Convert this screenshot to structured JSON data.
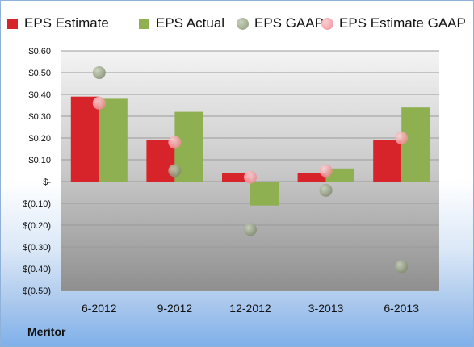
{
  "chart_data": {
    "type": "bar",
    "categories": [
      "6-2012",
      "9-2012",
      "12-2012",
      "3-2013",
      "6-2013"
    ],
    "series": [
      {
        "name": "EPS Estimate",
        "kind": "bar",
        "color": "#d7232a",
        "values": [
          0.39,
          0.19,
          0.04,
          0.04,
          0.19
        ]
      },
      {
        "name": "EPS Actual",
        "kind": "bar",
        "color": "#8fb050",
        "values": [
          0.38,
          0.32,
          -0.11,
          0.06,
          0.34
        ]
      },
      {
        "name": "EPS GAAP",
        "kind": "marker",
        "color": "#8e9a7c",
        "values": [
          0.5,
          0.05,
          -0.22,
          -0.04,
          -0.39
        ]
      },
      {
        "name": "EPS Estimate GAAP",
        "kind": "marker",
        "color": "#f08f97",
        "values": [
          0.36,
          0.18,
          0.02,
          0.05,
          0.2
        ]
      }
    ],
    "yticks": [
      "$0.60",
      "$0.50",
      "$0.40",
      "$0.30",
      "$0.20",
      "$0.10",
      "$-",
      "$(0.10)",
      "$(0.20)",
      "$(0.30)",
      "$(0.40)",
      "$(0.50)"
    ],
    "ylim": [
      -0.5,
      0.6
    ],
    "legend_position": "top",
    "grid": true
  },
  "company": "Meritor"
}
